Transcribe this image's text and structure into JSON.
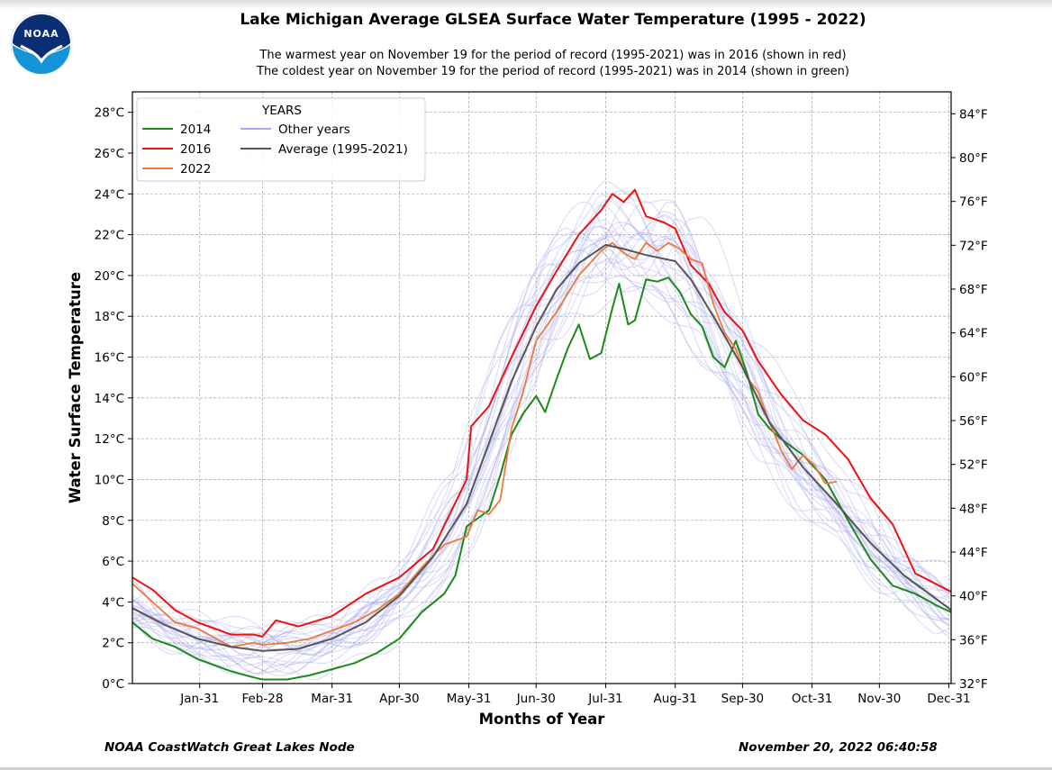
{
  "header": {
    "title": "Lake Michigan Average GLSEA Surface Water Temperature (1995 - 2022)",
    "subtitle_warm": "The warmest year on November 19 for the period of record (1995-2021) was in 2016 (shown in red)",
    "subtitle_cold": "The coldest year on November 19 for the period of record (1995-2021) was in 2014 (shown in green)",
    "logo_text": "NOAA"
  },
  "footer": {
    "source": "NOAA CoastWatch Great Lakes Node",
    "timestamp": "November 20, 2022 06:40:58"
  },
  "colors": {
    "y2014": "#1a8a1a",
    "y2016": "#ee1111",
    "y2022": "#f07a35",
    "other": "#a8a8f0",
    "average": "#555555",
    "logo_blue": "#1493d6"
  },
  "chart_data": {
    "type": "line",
    "xlabel": "Months of Year",
    "ylabel": "Water Surface Temperature",
    "xlim": [
      1,
      366
    ],
    "ylim": [
      0,
      29
    ],
    "ylim_right_f": [
      32,
      86
    ],
    "x_ticks": [
      {
        "day": 31,
        "label": "Jan-31"
      },
      {
        "day": 59,
        "label": "Feb-28"
      },
      {
        "day": 90,
        "label": "Mar-31"
      },
      {
        "day": 120,
        "label": "Apr-30"
      },
      {
        "day": 151,
        "label": "May-31"
      },
      {
        "day": 181,
        "label": "Jun-30"
      },
      {
        "day": 212,
        "label": "Jul-31"
      },
      {
        "day": 243,
        "label": "Aug-31"
      },
      {
        "day": 273,
        "label": "Sep-30"
      },
      {
        "day": 304,
        "label": "Oct-31"
      },
      {
        "day": 334,
        "label": "Nov-30"
      },
      {
        "day": 365,
        "label": "Dec-31"
      }
    ],
    "y_ticks": [
      {
        "value": 0,
        "label": "0°C"
      },
      {
        "value": 2,
        "label": "2°C"
      },
      {
        "value": 4,
        "label": "4°C"
      },
      {
        "value": 6,
        "label": "6°C"
      },
      {
        "value": 8,
        "label": "8°C"
      },
      {
        "value": 10,
        "label": "10°C"
      },
      {
        "value": 12,
        "label": "12°C"
      },
      {
        "value": 14,
        "label": "14°C"
      },
      {
        "value": 16,
        "label": "16°C"
      },
      {
        "value": 18,
        "label": "18°C"
      },
      {
        "value": 20,
        "label": "20°C"
      },
      {
        "value": 22,
        "label": "22°C"
      },
      {
        "value": 24,
        "label": "24°C"
      },
      {
        "value": 26,
        "label": "26°C"
      },
      {
        "value": 28,
        "label": "28°C"
      }
    ],
    "y_ticks_right": [
      {
        "value": 32,
        "label": "32°F"
      },
      {
        "value": 36,
        "label": "36°F"
      },
      {
        "value": 40,
        "label": "40°F"
      },
      {
        "value": 44,
        "label": "44°F"
      },
      {
        "value": 48,
        "label": "48°F"
      },
      {
        "value": 52,
        "label": "52°F"
      },
      {
        "value": 56,
        "label": "56°F"
      },
      {
        "value": 60,
        "label": "60°F"
      },
      {
        "value": 64,
        "label": "64°F"
      },
      {
        "value": 68,
        "label": "68°F"
      },
      {
        "value": 72,
        "label": "72°F"
      },
      {
        "value": 76,
        "label": "76°F"
      },
      {
        "value": 80,
        "label": "80°F"
      },
      {
        "value": 84,
        "label": "84°F"
      }
    ],
    "legend": {
      "title": "YEARS",
      "position": "top-left",
      "entries": [
        {
          "label": "2014",
          "color_key": "y2014"
        },
        {
          "label": "2016",
          "color_key": "y2016"
        },
        {
          "label": "2022",
          "color_key": "y2022"
        },
        {
          "label": "Other years",
          "color_key": "other"
        },
        {
          "label": "Average (1995-2021)",
          "color_key": "average"
        }
      ]
    },
    "series": [
      {
        "name": "Average (1995-2021)",
        "color_key": "average",
        "x": [
          1,
          15,
          30,
          45,
          59,
          75,
          90,
          105,
          120,
          135,
          150,
          160,
          170,
          181,
          190,
          200,
          212,
          220,
          230,
          243,
          250,
          260,
          273,
          285,
          300,
          315,
          330,
          345,
          355,
          366
        ],
        "y": [
          3.7,
          2.9,
          2.2,
          1.8,
          1.6,
          1.7,
          2.2,
          3.0,
          4.3,
          6.2,
          8.8,
          11.8,
          14.8,
          17.5,
          19.3,
          20.6,
          21.5,
          21.3,
          21.0,
          20.7,
          19.8,
          18.0,
          15.5,
          12.8,
          10.6,
          8.8,
          6.9,
          5.3,
          4.5,
          3.6
        ]
      },
      {
        "name": "2016",
        "color_key": "y2016",
        "x": [
          1,
          10,
          20,
          30,
          45,
          55,
          59,
          65,
          75,
          90,
          105,
          120,
          135,
          150,
          152,
          160,
          170,
          181,
          190,
          200,
          210,
          215,
          220,
          225,
          230,
          238,
          243,
          250,
          258,
          265,
          273,
          280,
          290,
          300,
          310,
          320,
          330,
          340,
          350,
          366
        ],
        "y": [
          5.2,
          4.6,
          3.6,
          3.0,
          2.4,
          2.4,
          2.3,
          3.1,
          2.8,
          3.3,
          4.4,
          5.2,
          6.6,
          10.0,
          12.6,
          13.6,
          16.0,
          18.5,
          20.2,
          22.0,
          23.2,
          24.0,
          23.6,
          24.2,
          22.9,
          22.6,
          22.3,
          20.5,
          19.6,
          18.2,
          17.3,
          15.8,
          14.2,
          12.9,
          12.2,
          11.0,
          9.1,
          7.8,
          5.4,
          4.5
        ]
      },
      {
        "name": "2014",
        "color_key": "y2014",
        "x": [
          1,
          10,
          20,
          30,
          45,
          55,
          59,
          70,
          80,
          90,
          100,
          110,
          120,
          130,
          140,
          145,
          150,
          155,
          160,
          165,
          170,
          175,
          181,
          185,
          190,
          195,
          200,
          205,
          210,
          215,
          218,
          222,
          225,
          230,
          235,
          240,
          245,
          250,
          255,
          260,
          265,
          270,
          275,
          280,
          285,
          290,
          300,
          310,
          320,
          330,
          340,
          350,
          360,
          366
        ],
        "y": [
          3.0,
          2.2,
          1.8,
          1.2,
          0.6,
          0.3,
          0.2,
          0.2,
          0.4,
          0.7,
          1.0,
          1.5,
          2.2,
          3.5,
          4.4,
          5.3,
          7.7,
          8.1,
          8.5,
          10.2,
          12.2,
          13.2,
          14.1,
          13.3,
          14.9,
          16.4,
          17.6,
          15.9,
          16.2,
          18.4,
          19.6,
          17.6,
          17.8,
          19.8,
          19.7,
          19.9,
          19.2,
          18.1,
          17.5,
          16.0,
          15.5,
          16.8,
          15.2,
          13.2,
          12.5,
          12.0,
          11.2,
          10.0,
          8.0,
          6.1,
          4.8,
          4.4,
          3.8,
          3.5
        ]
      },
      {
        "name": "2022",
        "color_key": "y2022",
        "x": [
          1,
          10,
          20,
          30,
          45,
          55,
          59,
          70,
          80,
          90,
          100,
          110,
          120,
          130,
          140,
          150,
          155,
          160,
          165,
          170,
          175,
          181,
          190,
          200,
          210,
          215,
          220,
          225,
          230,
          235,
          240,
          245,
          250,
          255,
          260,
          265,
          270,
          275,
          280,
          285,
          290,
          295,
          300,
          305,
          310,
          315
        ],
        "y": [
          4.9,
          4.0,
          3.0,
          2.7,
          1.8,
          2.0,
          1.9,
          2.0,
          2.2,
          2.6,
          3.0,
          3.6,
          4.4,
          5.7,
          6.8,
          7.2,
          8.5,
          8.3,
          9.0,
          12.5,
          14.2,
          16.8,
          18.2,
          20.0,
          21.2,
          21.6,
          21.1,
          20.8,
          21.6,
          21.2,
          21.6,
          21.3,
          20.8,
          20.6,
          18.6,
          17.2,
          16.4,
          15.0,
          14.3,
          12.8,
          11.5,
          10.5,
          11.2,
          10.7,
          9.8,
          9.9
        ]
      }
    ],
    "other_years_count": 26
  }
}
